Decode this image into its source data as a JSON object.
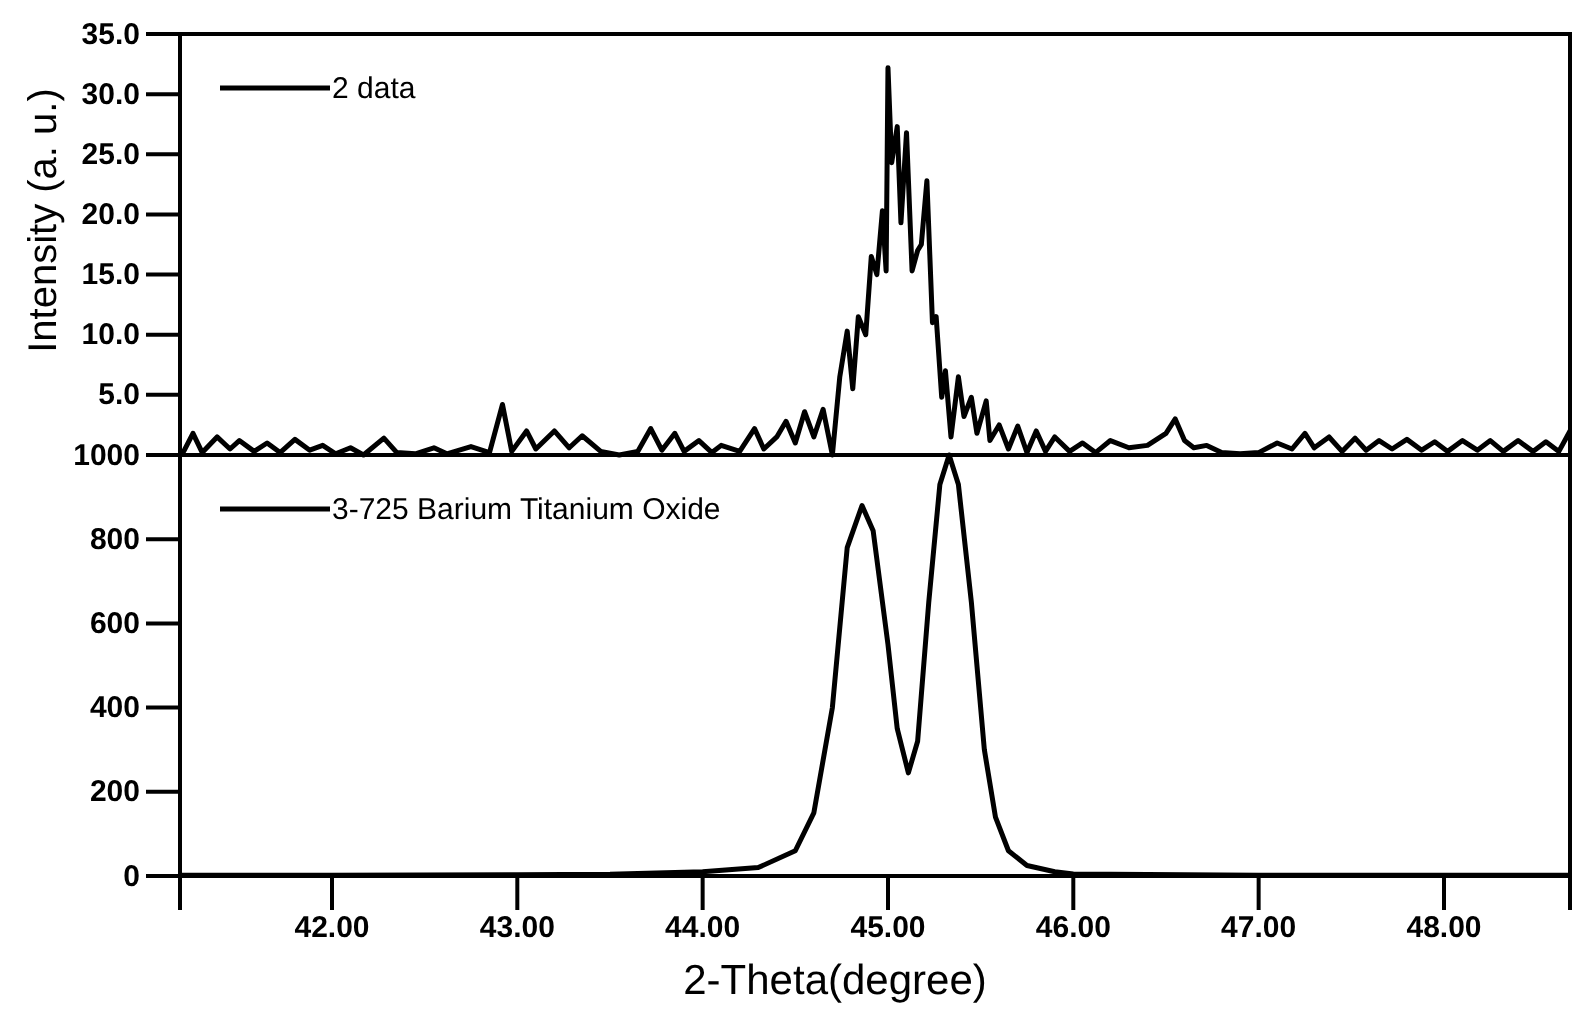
{
  "chart_data": [
    {
      "type": "line",
      "ylabel": "Intensity (a. u.)",
      "xlim": [
        41.18,
        48.68
      ],
      "ylim": [
        0,
        35
      ],
      "yticks": [
        {
          "value": 5,
          "label": "5.0"
        },
        {
          "value": 10,
          "label": "10.0"
        },
        {
          "value": 15,
          "label": "15.0"
        },
        {
          "value": 20,
          "label": "20.0"
        },
        {
          "value": 25,
          "label": "25.0"
        },
        {
          "value": 30,
          "label": "30.0"
        },
        {
          "value": 35,
          "label": "35.0"
        }
      ],
      "tick_labels": "y",
      "legend": "top left",
      "grid": false,
      "series": [
        {
          "name": "2 data",
          "color": "#000000",
          "x": [
            41.2,
            41.25,
            41.3,
            41.38,
            41.45,
            41.5,
            41.58,
            41.65,
            41.72,
            41.8,
            41.88,
            41.95,
            42.02,
            42.1,
            42.17,
            42.28,
            42.35,
            42.45,
            42.55,
            42.62,
            42.75,
            42.85,
            42.92,
            42.97,
            43.05,
            43.1,
            43.2,
            43.28,
            43.35,
            43.45,
            43.55,
            43.65,
            43.72,
            43.78,
            43.85,
            43.9,
            43.98,
            44.05,
            44.1,
            44.2,
            44.28,
            44.33,
            44.4,
            44.45,
            44.5,
            44.55,
            44.6,
            44.65,
            44.7,
            44.74,
            44.78,
            44.81,
            44.84,
            44.88,
            44.91,
            44.94,
            44.97,
            44.99,
            45.0,
            45.02,
            45.05,
            45.07,
            45.1,
            45.13,
            45.16,
            45.18,
            45.21,
            45.24,
            45.26,
            45.29,
            45.31,
            45.34,
            45.38,
            45.41,
            45.45,
            45.48,
            45.53,
            45.55,
            45.6,
            45.65,
            45.7,
            45.75,
            45.8,
            45.85,
            45.9,
            45.98,
            46.05,
            46.12,
            46.2,
            46.3,
            46.4,
            46.5,
            46.55,
            46.6,
            46.65,
            46.72,
            46.8,
            46.9,
            47.0,
            47.1,
            47.18,
            47.25,
            47.3,
            47.38,
            47.45,
            47.52,
            47.58,
            47.65,
            47.72,
            47.8,
            47.88,
            47.95,
            48.02,
            48.1,
            48.18,
            48.25,
            48.32,
            48.4,
            48.48,
            48.55,
            48.62,
            48.68
          ],
          "values": [
            0.3,
            1.8,
            0.2,
            1.5,
            0.5,
            1.2,
            0.3,
            1.0,
            0.2,
            1.3,
            0.4,
            0.8,
            0.1,
            0.6,
            0.0,
            1.4,
            0.2,
            0.1,
            0.6,
            0.1,
            0.7,
            0.2,
            4.2,
            0.3,
            2.0,
            0.5,
            2.0,
            0.6,
            1.6,
            0.3,
            0.0,
            0.3,
            2.2,
            0.4,
            1.8,
            0.3,
            1.2,
            0.2,
            0.8,
            0.3,
            2.2,
            0.5,
            1.5,
            2.8,
            1.0,
            3.6,
            1.5,
            3.8,
            0.0,
            6.5,
            10.3,
            5.5,
            11.5,
            10.0,
            16.5,
            15.0,
            20.3,
            15.3,
            32.2,
            24.3,
            27.3,
            19.3,
            26.8,
            15.3,
            17.0,
            17.5,
            22.8,
            11.0,
            11.5,
            4.8,
            7.0,
            1.5,
            6.5,
            3.2,
            4.8,
            1.8,
            4.5,
            1.2,
            2.5,
            0.5,
            2.4,
            0.2,
            2.0,
            0.3,
            1.5,
            0.3,
            1.0,
            0.2,
            1.2,
            0.6,
            0.8,
            1.8,
            3.0,
            1.2,
            0.6,
            0.8,
            0.2,
            0.1,
            0.2,
            1.0,
            0.5,
            1.8,
            0.6,
            1.5,
            0.3,
            1.4,
            0.4,
            1.2,
            0.5,
            1.3,
            0.4,
            1.1,
            0.3,
            1.2,
            0.4,
            1.2,
            0.3,
            1.2,
            0.3,
            1.1,
            0.3,
            2.0
          ]
        }
      ]
    },
    {
      "type": "line",
      "xlabel": "2-Theta(degree)",
      "xlim": [
        41.18,
        48.68
      ],
      "ylim": [
        0,
        1000
      ],
      "xticks": [
        {
          "value": 42,
          "label": "42.00"
        },
        {
          "value": 43,
          "label": "43.00"
        },
        {
          "value": 44,
          "label": "44.00"
        },
        {
          "value": 45,
          "label": "45.00"
        },
        {
          "value": 46,
          "label": "46.00"
        },
        {
          "value": 47,
          "label": "47.00"
        },
        {
          "value": 48,
          "label": "48.00"
        }
      ],
      "yticks": [
        0,
        200,
        400,
        600,
        800,
        1000
      ],
      "legend": "top left",
      "grid": false,
      "series": [
        {
          "name": "3-725 Barium Titanium Oxide",
          "color": "#000000",
          "x": [
            41.18,
            42.0,
            43.0,
            43.5,
            44.0,
            44.3,
            44.5,
            44.6,
            44.7,
            44.78,
            44.86,
            44.92,
            45.0,
            45.05,
            45.11,
            45.16,
            45.22,
            45.28,
            45.33,
            45.38,
            45.45,
            45.52,
            45.58,
            45.65,
            45.75,
            45.9,
            46.0,
            47.0,
            48.68
          ],
          "values": [
            2,
            2,
            3,
            4,
            10,
            20,
            60,
            150,
            400,
            780,
            880,
            820,
            550,
            350,
            245,
            320,
            650,
            930,
            1000,
            930,
            650,
            300,
            140,
            60,
            25,
            10,
            5,
            2,
            2
          ]
        }
      ]
    }
  ]
}
